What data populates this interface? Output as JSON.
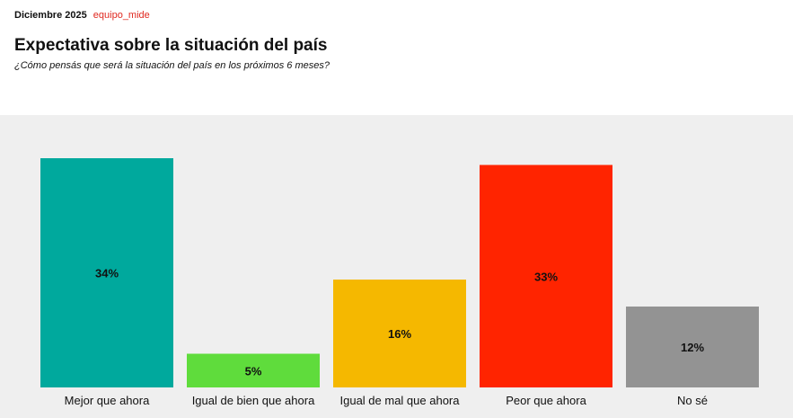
{
  "header": {
    "date": "Diciembre 2025",
    "source": "equipo_mide",
    "title": "Expectativa sobre la situación del país",
    "subtitle": "¿Cómo pensás que será la situación del país en los próximos 6 meses?"
  },
  "chart_data": {
    "type": "bar",
    "title": "Expectativa sobre la situación del país",
    "subtitle": "¿Cómo pensás que será la situación del país en los próximos 6 meses?",
    "categories": [
      "Mejor que ahora",
      "Igual de bien que ahora",
      "Igual de mal que ahora",
      "Peor que ahora",
      "No sé"
    ],
    "values": [
      34,
      5,
      16,
      33,
      12
    ],
    "value_labels": [
      "34%",
      "5%",
      "16%",
      "33%",
      "12%"
    ],
    "colors": [
      "#00a99d",
      "#5fdc3c",
      "#f5b800",
      "#ff2400",
      "#939393"
    ],
    "xlabel": "",
    "ylabel": "",
    "ylim": [
      0,
      36
    ],
    "unit": "%",
    "grid": false,
    "legend": "none"
  }
}
